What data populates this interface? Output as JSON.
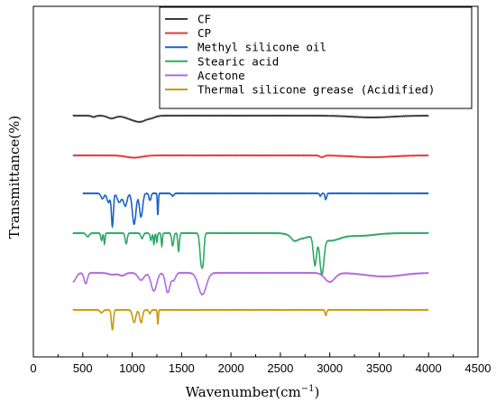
{
  "chart_data": {
    "type": "line",
    "xlabel": "Wavenumber(cm",
    "xlabel_sup": "−1",
    "xlabel_close": ")",
    "ylabel": "Transmittance(%)",
    "xlim": [
      0,
      4500
    ],
    "x_ticks": [
      0,
      500,
      1000,
      1500,
      2000,
      2500,
      3000,
      3500,
      4000,
      4500
    ],
    "y_ticks_shown": false,
    "grid": false,
    "legend_position": "top-center",
    "series": [
      {
        "name": "CF",
        "color": "#3c3c3c",
        "baseline": 128,
        "start": 400,
        "end": 4000,
        "peaks": [
          [
            610,
            1.5,
            20
          ],
          [
            790,
            3,
            40
          ],
          [
            1030,
            5,
            80
          ],
          [
            1100,
            3,
            50
          ],
          [
            1200,
            2,
            40
          ],
          [
            3430,
            2,
            200
          ]
        ]
      },
      {
        "name": "CP",
        "color": "#e23a3a",
        "baseline": 172,
        "start": 400,
        "end": 4000,
        "peaks": [
          [
            1020,
            2.5,
            80
          ],
          [
            2920,
            2,
            20
          ],
          [
            3430,
            2,
            200
          ]
        ]
      },
      {
        "name": "Methyl silicone oil",
        "color": "#1c63c4",
        "baseline": 214,
        "start": 500,
        "end": 4000,
        "peaks": [
          [
            700,
            6,
            15
          ],
          [
            760,
            10,
            15
          ],
          [
            800,
            36,
            10
          ],
          [
            870,
            10,
            20
          ],
          [
            930,
            14,
            18
          ],
          [
            1020,
            34,
            18
          ],
          [
            1090,
            26,
            16
          ],
          [
            1180,
            8,
            10
          ],
          [
            1260,
            24,
            5
          ],
          [
            1410,
            3,
            12
          ],
          [
            2960,
            7,
            8
          ],
          [
            2905,
            3,
            8
          ]
        ]
      },
      {
        "name": "Stearic acid",
        "color": "#2fa866",
        "baseline": 258,
        "start": 400,
        "end": 4000,
        "peaks": [
          [
            550,
            4,
            15
          ],
          [
            690,
            8,
            8
          ],
          [
            720,
            12,
            6
          ],
          [
            940,
            12,
            10
          ],
          [
            1100,
            6,
            12
          ],
          [
            1190,
            8,
            8
          ],
          [
            1220,
            12,
            6
          ],
          [
            1250,
            10,
            6
          ],
          [
            1300,
            14,
            6
          ],
          [
            1410,
            14,
            10
          ],
          [
            1470,
            20,
            8
          ],
          [
            1700,
            34,
            14
          ],
          [
            1720,
            20,
            10
          ],
          [
            2640,
            4,
            30
          ],
          [
            2850,
            32,
            16
          ],
          [
            2920,
            40,
            20
          ],
          [
            2700,
            6,
            80
          ],
          [
            3000,
            8,
            100
          ],
          [
            3300,
            3,
            150
          ]
        ]
      },
      {
        "name": "Acetone",
        "color": "#b06bdc",
        "baseline": 302,
        "start": 400,
        "end": 4000,
        "peaks": [
          [
            400,
            10,
            30
          ],
          [
            530,
            12,
            16
          ],
          [
            800,
            2,
            40
          ],
          [
            900,
            3,
            30
          ],
          [
            1090,
            8,
            30
          ],
          [
            1220,
            20,
            28
          ],
          [
            1360,
            22,
            22
          ],
          [
            1420,
            8,
            20
          ],
          [
            1710,
            24,
            40
          ],
          [
            3000,
            10,
            50
          ],
          [
            3550,
            4,
            180
          ]
        ]
      },
      {
        "name": "Thermal silicone grease (Acidified)",
        "color": "#c99a0a",
        "baseline": 343,
        "start": 400,
        "end": 4000,
        "peaks": [
          [
            690,
            3,
            15
          ],
          [
            800,
            22,
            10
          ],
          [
            1020,
            14,
            16
          ],
          [
            1090,
            14,
            14
          ],
          [
            1260,
            16,
            5
          ],
          [
            1180,
            4,
            10
          ],
          [
            2960,
            6,
            8
          ]
        ]
      }
    ]
  }
}
